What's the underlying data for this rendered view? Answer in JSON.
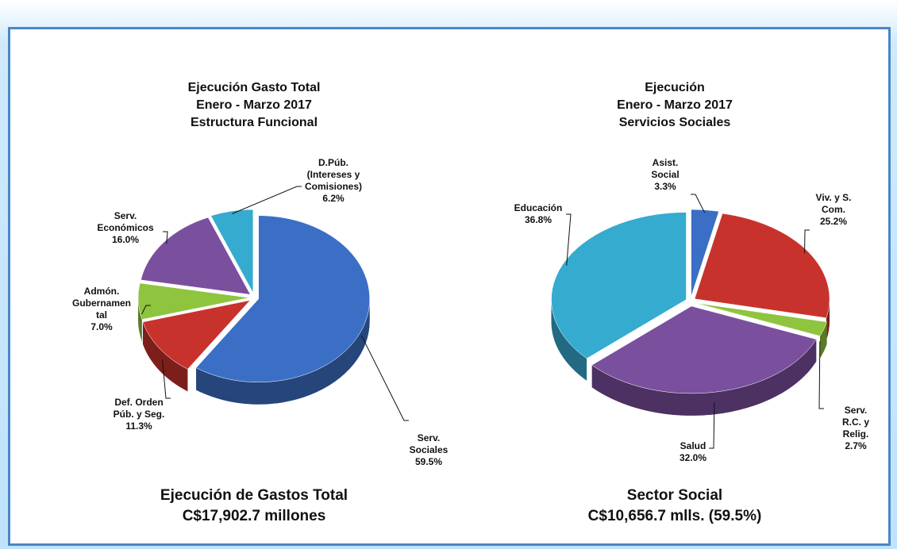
{
  "chart_data": [
    {
      "type": "pie3d",
      "title": "Ejecución Gasto Total\nEnero - Marzo 2017\nEstructura Funcional",
      "categories": [
        "Serv.\nSociales",
        "Def. Orden\nPúb. y Seg.",
        "Admón.\nGubernamen\ntal",
        "Serv.\nEconómicos",
        "D.Púb.\n(Intereses y\nComisiones)"
      ],
      "values": [
        59.5,
        11.3,
        7.0,
        16.0,
        6.2
      ],
      "value_labels": [
        "59.5%",
        "11.3%",
        "7.0%",
        "16.0%",
        "6.2%"
      ],
      "colors": [
        "#3b6fc6",
        "#c8322c",
        "#8fc43f",
        "#7a4f9e",
        "#35abd0"
      ],
      "caption": [
        "Ejecución de Gastos Total",
        "C$17,902.7 millones"
      ]
    },
    {
      "type": "pie3d",
      "title": "Ejecución\nEnero -  Marzo 2017\nServicios Sociales",
      "categories": [
        "Asist.\nSocial",
        "Viv. y S.\nCom.",
        "Serv. R.C. y\nRelig.",
        "Salud",
        "Educación"
      ],
      "values": [
        3.3,
        25.2,
        2.7,
        32.0,
        36.8
      ],
      "value_labels": [
        "3.3%",
        "25.2%",
        "2.7%",
        "32.0%",
        "36.8%"
      ],
      "colors": [
        "#3b6fc6",
        "#c8322c",
        "#8fc43f",
        "#7a4f9e",
        "#35abd0"
      ],
      "caption": [
        "Sector Social",
        "C$10,656.7 mlls. (59.5%)"
      ]
    }
  ]
}
